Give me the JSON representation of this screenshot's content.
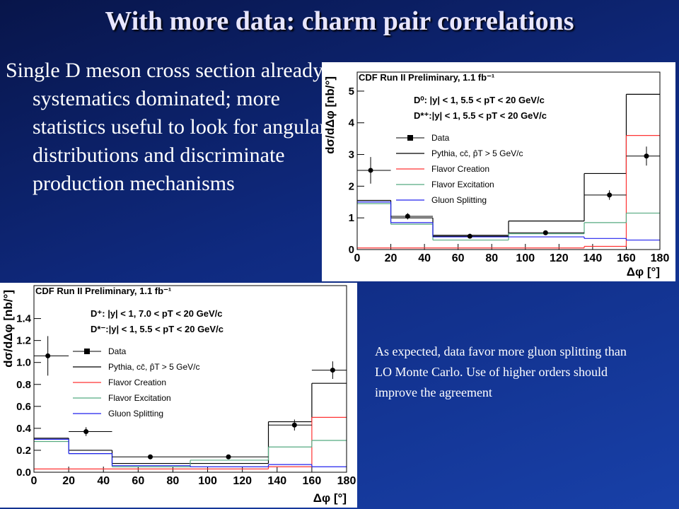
{
  "slide": {
    "title": "With more data: charm pair correlations",
    "bullet": "Single D meson cross section already systematics dominated; more statistics useful to look for angular distributions and discriminate production mechanisms",
    "note": "As expected, data favor more gluon splitting than LO Monte Carlo. Use of higher orders should improve the agreement"
  },
  "chart_data": [
    {
      "type": "histogram",
      "title": "CDF Run II Preliminary, 1.1 fb⁻¹",
      "annotations": [
        "D⁰: |y| < 1, 5.5 < pT < 20 GeV/c",
        "D*⁺:|y| < 1, 5.5 < pT < 20 GeV/c"
      ],
      "x_label": "Δφ [°]",
      "y_label": "dσ/dΔφ [nb/°]",
      "bins": [
        0,
        20,
        45,
        90,
        135,
        160,
        180
      ],
      "xlim": [
        0,
        180
      ],
      "xticks": [
        0,
        20,
        40,
        60,
        80,
        100,
        120,
        140,
        160,
        180
      ],
      "ylim": [
        0,
        5.6
      ],
      "yticks": [
        0,
        1,
        2,
        3,
        4,
        5
      ],
      "points": {
        "name": "Data",
        "color": "#000000",
        "x": [
          8,
          30,
          67,
          112,
          150,
          172
        ],
        "values": [
          2.5,
          1.05,
          0.42,
          0.53,
          1.72,
          2.95
        ],
        "errors": [
          0.42,
          0.1,
          0.07,
          0.07,
          0.15,
          0.3
        ]
      },
      "series": [
        {
          "name": "Pythia, cc̄, p̂T > 5 GeV/c",
          "color": "#000000",
          "values": [
            1.55,
            1.0,
            0.45,
            0.9,
            2.4,
            4.9
          ]
        },
        {
          "name": "Flavor Creation",
          "color": "#ff3333",
          "values": [
            0.05,
            0.05,
            0.05,
            0.05,
            0.1,
            3.6
          ]
        },
        {
          "name": "Flavor Excitation",
          "color": "#55aa80",
          "values": [
            1.45,
            0.8,
            0.3,
            0.5,
            0.85,
            1.15
          ]
        },
        {
          "name": "Gluon Splitting",
          "color": "#2222ee",
          "values": [
            1.5,
            0.85,
            0.4,
            0.4,
            0.35,
            0.3
          ]
        }
      ]
    },
    {
      "type": "histogram",
      "title": "CDF Run II Preliminary, 1.1 fb⁻¹",
      "annotations": [
        "D⁺: |y| < 1, 7.0 < pT < 20 GeV/c",
        "D*⁻:|y| < 1, 5.5 < pT < 20 GeV/c"
      ],
      "x_label": "Δφ [°]",
      "y_label": "dσ/dΔφ [nb/°]",
      "bins": [
        0,
        20,
        45,
        90,
        135,
        160,
        180
      ],
      "xlim": [
        0,
        180
      ],
      "xticks": [
        0,
        20,
        40,
        60,
        80,
        100,
        120,
        140,
        160,
        180
      ],
      "ylim": [
        0,
        1.7
      ],
      "yticks": [
        {
          "value": 0,
          "label": "0.0"
        },
        0.2,
        0.4,
        0.6,
        0.8,
        {
          "value": 1,
          "label": "1.0"
        },
        1.2,
        1.4
      ],
      "points": {
        "name": "Data",
        "color": "#000000",
        "x": [
          8,
          30,
          67,
          112,
          150,
          172
        ],
        "values": [
          1.06,
          0.37,
          0.14,
          0.14,
          0.43,
          0.93
        ],
        "errors": [
          0.18,
          0.04,
          0.02,
          0.02,
          0.05,
          0.08
        ]
      },
      "series": [
        {
          "name": "Pythia, cc̄, p̂T > 5 GeV/c",
          "color": "#000000",
          "values": [
            0.31,
            0.2,
            0.08,
            0.08,
            0.46,
            0.81
          ]
        },
        {
          "name": "Flavor Creation",
          "color": "#ff3333",
          "values": [
            0.03,
            0.03,
            0.03,
            0.03,
            0.05,
            0.5
          ]
        },
        {
          "name": "Flavor Excitation",
          "color": "#55aa80",
          "values": [
            0.28,
            0.17,
            0.05,
            0.11,
            0.23,
            0.29
          ]
        },
        {
          "name": "Gluon Splitting",
          "color": "#2222ee",
          "values": [
            0.3,
            0.17,
            0.06,
            0.05,
            0.07,
            0.05
          ]
        }
      ]
    }
  ]
}
